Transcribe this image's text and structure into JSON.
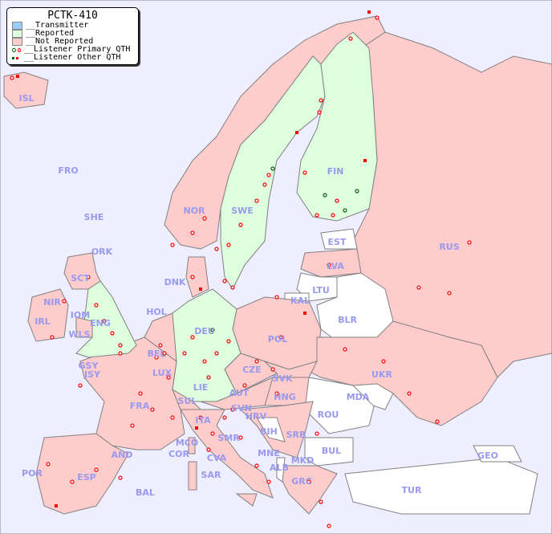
{
  "title": "PCTK-410",
  "legend": {
    "transmitter": "__Transmitter",
    "reported": "__Reported",
    "not_reported": "__Not Reported",
    "primary": "__Listener Primary QTH",
    "other": "__Listener Other QTH"
  },
  "colors": {
    "sea": "#eeeeff",
    "transmitter": "#99ccff",
    "reported": "#ddffdd",
    "not_reported": "#ffcccc",
    "none": "#ffffff",
    "listener": "#ff0000",
    "listener_alt": "#006600",
    "border": "#808080"
  },
  "labels": {
    "ISL": "ISL",
    "FRO": "FRO",
    "SHE": "SHE",
    "ORK": "ORK",
    "NOR": "NOR",
    "SWE": "SWE",
    "FIN": "FIN",
    "EST": "EST",
    "RUS": "RUS",
    "LVA": "LVA",
    "LTU": "LTU",
    "KAL": "KAL",
    "BLR": "BLR",
    "DNK": "DNK",
    "HOL": "HOL",
    "SCT": "SCT",
    "NIR": "NIR",
    "IOM": "IOM",
    "IRL": "IRL",
    "WLS": "WLS",
    "ENG": "ENG",
    "GSY": "GSY",
    "JSY": "JSY",
    "BEL": "BEL",
    "LUX": "LUX",
    "DEU": "DEU",
    "POL": "POL",
    "CZE": "CZE",
    "SVK": "SVK",
    "UKR": "UKR",
    "FRA": "FRA",
    "SUI": "SUI",
    "LIE": "LIE",
    "AUT": "AUT",
    "HNG": "HNG",
    "MDA": "MDA",
    "ROU": "ROU",
    "SVN": "SVN",
    "HRV": "HRV",
    "ITA": "ITA",
    "BIH": "BIH",
    "SRB": "SRB",
    "SMR": "SMR",
    "MCO": "MCO",
    "COR": "COR",
    "CVA": "CVA",
    "MNE": "MNE",
    "ALB": "ALB",
    "MKD": "MKD",
    "BUL": "BUL",
    "GEO": "GEO",
    "AND": "AND",
    "POR": "POR",
    "ESP": "ESP",
    "BAL": "BAL",
    "SAR": "SAR",
    "GRC": "GRC",
    "TUR": "TUR"
  }
}
